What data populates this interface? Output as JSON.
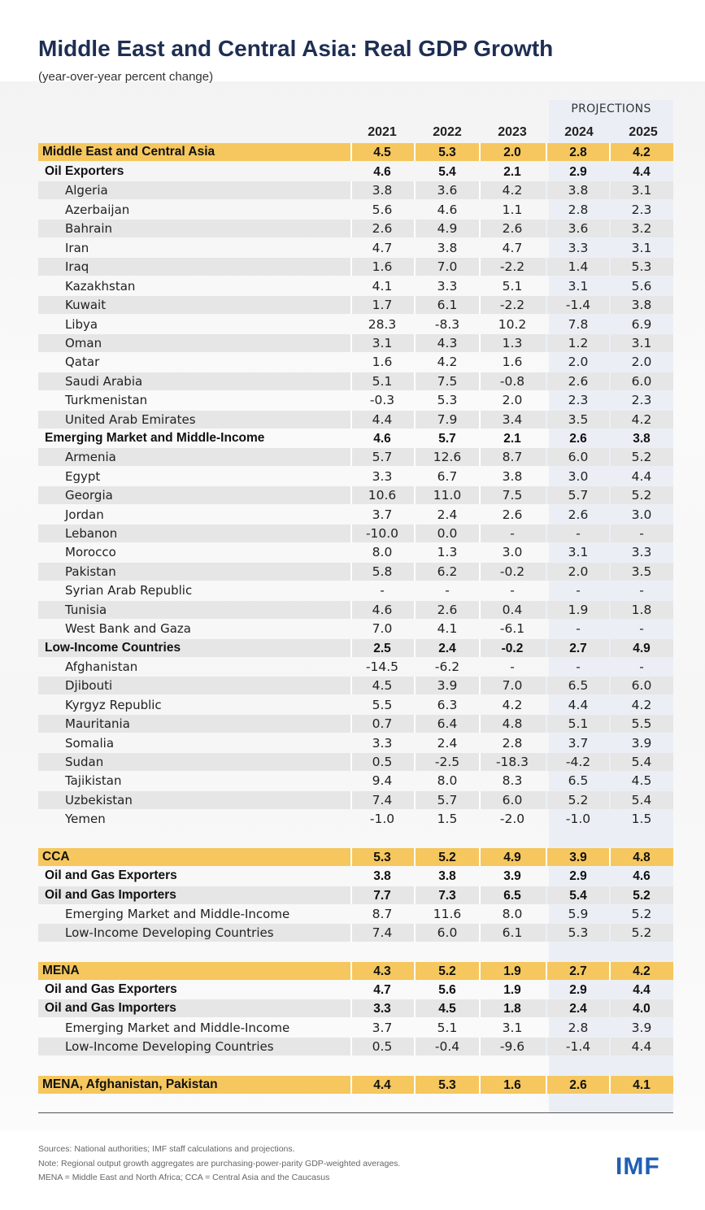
{
  "title": "Middle East and Central Asia: Real GDP Growth",
  "subtitle": "(year-over-year percent change)",
  "projections_label": "PROJECTIONS",
  "colors": {
    "total_row": "#f5c75e",
    "stripe_row": "#e6e6e6",
    "projection_band": "#ebeff5",
    "title": "#1e2f52",
    "logo": "#1f5fb4"
  },
  "chart_data": {
    "type": "table",
    "title": "Middle East and Central Asia: Real GDP Growth",
    "subtitle": "(year-over-year percent change)",
    "columns": [
      "2021",
      "2022",
      "2023",
      "2024",
      "2025"
    ],
    "projection_columns": [
      "2024",
      "2025"
    ],
    "rows": [
      {
        "label": "Middle East and Central Asia",
        "level": 0,
        "style": "total",
        "values": [
          "4.5",
          "5.3",
          "2.0",
          "2.8",
          "4.2"
        ]
      },
      {
        "label": "Oil Exporters",
        "level": 0,
        "style": "group",
        "values": [
          "4.6",
          "5.4",
          "2.1",
          "2.9",
          "4.4"
        ]
      },
      {
        "label": "Algeria",
        "level": 1,
        "style": "item",
        "values": [
          "3.8",
          "3.6",
          "4.2",
          "3.8",
          "3.1"
        ]
      },
      {
        "label": "Azerbaijan",
        "level": 1,
        "style": "item",
        "values": [
          "5.6",
          "4.6",
          "1.1",
          "2.8",
          "2.3"
        ]
      },
      {
        "label": "Bahrain",
        "level": 1,
        "style": "item",
        "values": [
          "2.6",
          "4.9",
          "2.6",
          "3.6",
          "3.2"
        ]
      },
      {
        "label": "Iran",
        "level": 1,
        "style": "item",
        "values": [
          "4.7",
          "3.8",
          "4.7",
          "3.3",
          "3.1"
        ]
      },
      {
        "label": "Iraq",
        "level": 1,
        "style": "item",
        "values": [
          "1.6",
          "7.0",
          "-2.2",
          "1.4",
          "5.3"
        ]
      },
      {
        "label": "Kazakhstan",
        "level": 1,
        "style": "item",
        "values": [
          "4.1",
          "3.3",
          "5.1",
          "3.1",
          "5.6"
        ]
      },
      {
        "label": "Kuwait",
        "level": 1,
        "style": "item",
        "values": [
          "1.7",
          "6.1",
          "-2.2",
          "-1.4",
          "3.8"
        ]
      },
      {
        "label": "Libya",
        "level": 1,
        "style": "item",
        "values": [
          "28.3",
          "-8.3",
          "10.2",
          "7.8",
          "6.9"
        ]
      },
      {
        "label": "Oman",
        "level": 1,
        "style": "item",
        "values": [
          "3.1",
          "4.3",
          "1.3",
          "1.2",
          "3.1"
        ]
      },
      {
        "label": "Qatar",
        "level": 1,
        "style": "item",
        "values": [
          "1.6",
          "4.2",
          "1.6",
          "2.0",
          "2.0"
        ]
      },
      {
        "label": "Saudi Arabia",
        "level": 1,
        "style": "item",
        "values": [
          "5.1",
          "7.5",
          "-0.8",
          "2.6",
          "6.0"
        ]
      },
      {
        "label": "Turkmenistan",
        "level": 1,
        "style": "item",
        "values": [
          "-0.3",
          "5.3",
          "2.0",
          "2.3",
          "2.3"
        ]
      },
      {
        "label": "United Arab Emirates",
        "level": 1,
        "style": "item",
        "values": [
          "4.4",
          "7.9",
          "3.4",
          "3.5",
          "4.2"
        ]
      },
      {
        "label": "Emerging Market and Middle-Income",
        "level": 0,
        "style": "group",
        "values": [
          "4.6",
          "5.7",
          "2.1",
          "2.6",
          "3.8"
        ]
      },
      {
        "label": "Armenia",
        "level": 1,
        "style": "item",
        "values": [
          "5.7",
          "12.6",
          "8.7",
          "6.0",
          "5.2"
        ]
      },
      {
        "label": "Egypt",
        "level": 1,
        "style": "item",
        "values": [
          "3.3",
          "6.7",
          "3.8",
          "3.0",
          "4.4"
        ]
      },
      {
        "label": "Georgia",
        "level": 1,
        "style": "item",
        "values": [
          "10.6",
          "11.0",
          "7.5",
          "5.7",
          "5.2"
        ]
      },
      {
        "label": "Jordan",
        "level": 1,
        "style": "item",
        "values": [
          "3.7",
          "2.4",
          "2.6",
          "2.6",
          "3.0"
        ]
      },
      {
        "label": "Lebanon",
        "level": 1,
        "style": "item",
        "values": [
          "-10.0",
          "0.0",
          "-",
          "-",
          "-"
        ]
      },
      {
        "label": "Morocco",
        "level": 1,
        "style": "item",
        "values": [
          "8.0",
          "1.3",
          "3.0",
          "3.1",
          "3.3"
        ]
      },
      {
        "label": "Pakistan",
        "level": 1,
        "style": "item",
        "values": [
          "5.8",
          "6.2",
          "-0.2",
          "2.0",
          "3.5"
        ]
      },
      {
        "label": "Syrian Arab Republic",
        "level": 1,
        "style": "item",
        "values": [
          "-",
          "-",
          "-",
          "-",
          "-"
        ]
      },
      {
        "label": "Tunisia",
        "level": 1,
        "style": "item",
        "values": [
          "4.6",
          "2.6",
          "0.4",
          "1.9",
          "1.8"
        ]
      },
      {
        "label": "West Bank and Gaza",
        "level": 1,
        "style": "item",
        "values": [
          "7.0",
          "4.1",
          "-6.1",
          "-",
          "-"
        ]
      },
      {
        "label": "Low-Income Countries",
        "level": 0,
        "style": "group",
        "values": [
          "2.5",
          "2.4",
          "-0.2",
          "2.7",
          "4.9"
        ]
      },
      {
        "label": "Afghanistan",
        "level": 1,
        "style": "item",
        "values": [
          "-14.5",
          "-6.2",
          "-",
          "-",
          "-"
        ]
      },
      {
        "label": "Djibouti",
        "level": 1,
        "style": "item",
        "values": [
          "4.5",
          "3.9",
          "7.0",
          "6.5",
          "6.0"
        ]
      },
      {
        "label": "Kyrgyz Republic",
        "level": 1,
        "style": "item",
        "values": [
          "5.5",
          "6.3",
          "4.2",
          "4.4",
          "4.2"
        ]
      },
      {
        "label": "Mauritania",
        "level": 1,
        "style": "item",
        "values": [
          "0.7",
          "6.4",
          "4.8",
          "5.1",
          "5.5"
        ]
      },
      {
        "label": "Somalia",
        "level": 1,
        "style": "item",
        "values": [
          "3.3",
          "2.4",
          "2.8",
          "3.7",
          "3.9"
        ]
      },
      {
        "label": "Sudan",
        "level": 1,
        "style": "item",
        "values": [
          "0.5",
          "-2.5",
          "-18.3",
          "-4.2",
          "5.4"
        ]
      },
      {
        "label": "Tajikistan",
        "level": 1,
        "style": "item",
        "values": [
          "9.4",
          "8.0",
          "8.3",
          "6.5",
          "4.5"
        ]
      },
      {
        "label": "Uzbekistan",
        "level": 1,
        "style": "item",
        "values": [
          "7.4",
          "5.7",
          "6.0",
          "5.2",
          "5.4"
        ]
      },
      {
        "label": "Yemen",
        "level": 1,
        "style": "item",
        "values": [
          "-1.0",
          "1.5",
          "-2.0",
          "-1.0",
          "1.5"
        ]
      },
      {
        "label": "CCA",
        "level": 0,
        "style": "total",
        "values": [
          "5.3",
          "5.2",
          "4.9",
          "3.9",
          "4.8"
        ]
      },
      {
        "label": "Oil and Gas Exporters",
        "level": 0,
        "style": "group",
        "values": [
          "3.8",
          "3.8",
          "3.9",
          "2.9",
          "4.6"
        ]
      },
      {
        "label": "Oil and Gas Importers",
        "level": 0,
        "style": "group",
        "values": [
          "7.7",
          "7.3",
          "6.5",
          "5.4",
          "5.2"
        ]
      },
      {
        "label": "Emerging Market and Middle-Income",
        "level": 1,
        "style": "item",
        "values": [
          "8.7",
          "11.6",
          "8.0",
          "5.9",
          "5.2"
        ]
      },
      {
        "label": "Low-Income Developing Countries",
        "level": 1,
        "style": "item",
        "values": [
          "7.4",
          "6.0",
          "6.1",
          "5.3",
          "5.2"
        ]
      },
      {
        "label": "MENA",
        "level": 0,
        "style": "total",
        "values": [
          "4.3",
          "5.2",
          "1.9",
          "2.7",
          "4.2"
        ]
      },
      {
        "label": "Oil and Gas Exporters",
        "level": 0,
        "style": "group",
        "values": [
          "4.7",
          "5.6",
          "1.9",
          "2.9",
          "4.4"
        ]
      },
      {
        "label": "Oil and Gas Importers",
        "level": 0,
        "style": "group",
        "values": [
          "3.3",
          "4.5",
          "1.8",
          "2.4",
          "4.0"
        ]
      },
      {
        "label": "Emerging Market and Middle-Income",
        "level": 1,
        "style": "item",
        "values": [
          "3.7",
          "5.1",
          "3.1",
          "2.8",
          "3.9"
        ]
      },
      {
        "label": "Low-Income Developing Countries",
        "level": 1,
        "style": "item",
        "values": [
          "0.5",
          "-0.4",
          "-9.6",
          "-1.4",
          "4.4"
        ]
      },
      {
        "label": "MENA, Afghanistan, Pakistan",
        "level": 0,
        "style": "total",
        "values": [
          "4.4",
          "5.3",
          "1.6",
          "2.6",
          "4.1"
        ]
      }
    ]
  },
  "notes": [
    "Sources: National authorities; IMF staff calculations and projections.",
    "Note: Regional output growth aggregates are purchasing-power-parity GDP-weighted averages.",
    "MENA = Middle East and North Africa; CCA = Central Asia and the Caucasus"
  ],
  "logo": "IMF"
}
